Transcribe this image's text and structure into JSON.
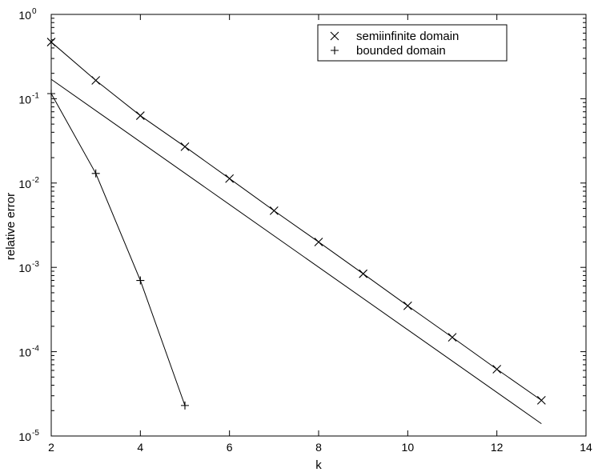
{
  "chart_data": {
    "type": "line",
    "xlabel": "k",
    "ylabel": "relative error",
    "xlim": [
      2,
      14
    ],
    "ylim": [
      1e-05,
      1
    ],
    "yscale": "log",
    "xticks": [
      2,
      4,
      6,
      8,
      10,
      12,
      14
    ],
    "yticks": [
      {
        "value": 1e-05,
        "base": "10",
        "exp": "-5"
      },
      {
        "value": 0.0001,
        "base": "10",
        "exp": "-4"
      },
      {
        "value": 0.001,
        "base": "10",
        "exp": "-3"
      },
      {
        "value": 0.01,
        "base": "10",
        "exp": "-2"
      },
      {
        "value": 0.1,
        "base": "10",
        "exp": "-1"
      },
      {
        "value": 1,
        "base": "10",
        "exp": "0"
      }
    ],
    "grid": false,
    "legend": "top-right",
    "series": [
      {
        "name": "semiinfinite domain",
        "marker": "x",
        "x": [
          2,
          3,
          4,
          5,
          6,
          7,
          8,
          9,
          10,
          11,
          12,
          13
        ],
        "values": [
          0.47,
          0.165,
          0.063,
          0.027,
          0.0113,
          0.0047,
          0.002,
          0.00084,
          0.00035,
          0.000148,
          6.2e-05,
          2.65e-05
        ]
      },
      {
        "name": "bounded domain",
        "marker": "+",
        "x": [
          2,
          3,
          4,
          5
        ],
        "values": [
          0.115,
          0.013,
          0.0007,
          2.3e-05
        ]
      },
      {
        "marker": "none",
        "x": [
          2,
          13
        ],
        "values": [
          0.17,
          1.4e-05
        ]
      }
    ]
  }
}
